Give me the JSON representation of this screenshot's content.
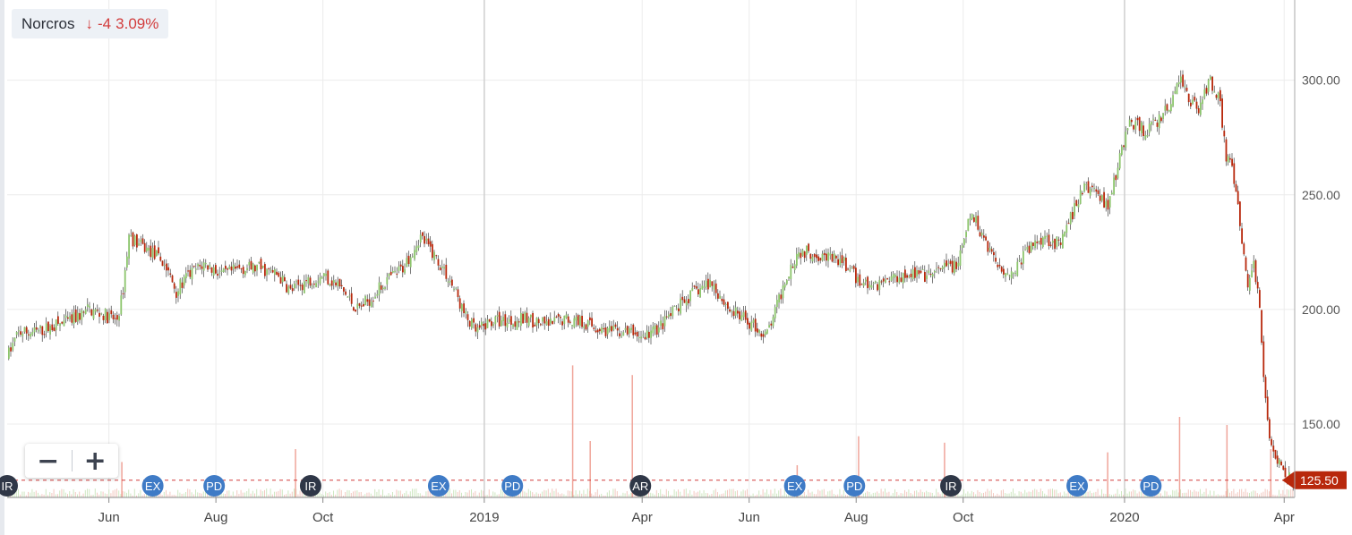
{
  "header": {
    "symbol": "Norcros",
    "change": "-4",
    "change_percent": "3.09%",
    "arrow_icon": "arrow-down-icon",
    "down_color": "#d23c3c"
  },
  "zoom": {
    "minus_label": "−",
    "plus_label": "+"
  },
  "colors": {
    "up": "#8cc56c",
    "down": "#b8280c",
    "wick": "#222222",
    "last_line": "#d23c3c",
    "event_light": "#3f7bc6",
    "event_dark": "#2f3747"
  },
  "chart_data": {
    "type": "candlestick",
    "title": "",
    "xlabel": "",
    "ylabel": "",
    "x_range": [
      "2018-04-04",
      "2020-04-07"
    ],
    "ylim": [
      118,
      335
    ],
    "y_ticks": [
      150,
      200,
      250,
      300
    ],
    "y_tick_labels": [
      "150.00",
      "200.00",
      "250.00",
      "300.00"
    ],
    "x_ticks": [
      {
        "date": "2018-06-01",
        "label": "Jun"
      },
      {
        "date": "2018-08-01",
        "label": "Aug"
      },
      {
        "date": "2018-10-01",
        "label": "Oct"
      },
      {
        "date": "2019-01-01",
        "label": "2019"
      },
      {
        "date": "2019-04-01",
        "label": "Apr"
      },
      {
        "date": "2019-06-01",
        "label": "Jun"
      },
      {
        "date": "2019-08-01",
        "label": "Aug"
      },
      {
        "date": "2019-10-01",
        "label": "Oct"
      },
      {
        "date": "2020-01-01",
        "label": "2020"
      },
      {
        "date": "2020-04-01",
        "label": "Apr"
      }
    ],
    "last_price": 125.5,
    "last_price_label": "125.50",
    "grid": true,
    "price_path": [
      [
        "2018-04-04",
        180
      ],
      [
        "2018-04-10",
        190
      ],
      [
        "2018-04-20",
        190
      ],
      [
        "2018-05-01",
        193
      ],
      [
        "2018-05-10",
        195
      ],
      [
        "2018-05-20",
        200
      ],
      [
        "2018-05-28",
        198
      ],
      [
        "2018-06-05",
        195
      ],
      [
        "2018-06-08",
        205
      ],
      [
        "2018-06-12",
        232
      ],
      [
        "2018-06-18",
        228
      ],
      [
        "2018-06-25",
        225
      ],
      [
        "2018-07-02",
        220
      ],
      [
        "2018-07-09",
        208
      ],
      [
        "2018-07-16",
        215
      ],
      [
        "2018-07-25",
        220
      ],
      [
        "2018-08-05",
        215
      ],
      [
        "2018-08-15",
        218
      ],
      [
        "2018-08-25",
        218
      ],
      [
        "2018-09-05",
        215
      ],
      [
        "2018-09-12",
        208
      ],
      [
        "2018-09-20",
        212
      ],
      [
        "2018-10-01",
        215
      ],
      [
        "2018-10-10",
        210
      ],
      [
        "2018-10-20",
        200
      ],
      [
        "2018-10-28",
        205
      ],
      [
        "2018-11-05",
        212
      ],
      [
        "2018-11-15",
        218
      ],
      [
        "2018-11-25",
        232
      ],
      [
        "2018-12-01",
        226
      ],
      [
        "2018-12-08",
        218
      ],
      [
        "2018-12-15",
        208
      ],
      [
        "2018-12-20",
        198
      ],
      [
        "2018-12-27",
        190
      ],
      [
        "2019-01-05",
        195
      ],
      [
        "2019-01-15",
        195
      ],
      [
        "2019-01-25",
        196
      ],
      [
        "2019-02-05",
        193
      ],
      [
        "2019-02-15",
        196
      ],
      [
        "2019-02-25",
        195
      ],
      [
        "2019-03-05",
        192
      ],
      [
        "2019-03-15",
        190
      ],
      [
        "2019-03-25",
        190
      ],
      [
        "2019-04-01",
        188
      ],
      [
        "2019-04-10",
        192
      ],
      [
        "2019-04-20",
        200
      ],
      [
        "2019-05-01",
        208
      ],
      [
        "2019-05-10",
        212
      ],
      [
        "2019-05-20",
        200
      ],
      [
        "2019-05-28",
        196
      ],
      [
        "2019-06-05",
        192
      ],
      [
        "2019-06-10",
        188
      ],
      [
        "2019-06-15",
        198
      ],
      [
        "2019-06-22",
        215
      ],
      [
        "2019-06-28",
        225
      ],
      [
        "2019-07-05",
        225
      ],
      [
        "2019-07-15",
        223
      ],
      [
        "2019-07-25",
        220
      ],
      [
        "2019-08-01",
        213
      ],
      [
        "2019-08-10",
        210
      ],
      [
        "2019-08-20",
        214
      ],
      [
        "2019-09-01",
        216
      ],
      [
        "2019-09-10",
        214
      ],
      [
        "2019-09-20",
        218
      ],
      [
        "2019-09-28",
        220
      ],
      [
        "2019-10-05",
        242
      ],
      [
        "2019-10-12",
        232
      ],
      [
        "2019-10-20",
        220
      ],
      [
        "2019-10-28",
        215
      ],
      [
        "2019-11-05",
        225
      ],
      [
        "2019-11-15",
        232
      ],
      [
        "2019-11-25",
        228
      ],
      [
        "2019-12-01",
        240
      ],
      [
        "2019-12-08",
        253
      ],
      [
        "2019-12-15",
        252
      ],
      [
        "2019-12-22",
        245
      ],
      [
        "2019-12-27",
        260
      ],
      [
        "2020-01-03",
        282
      ],
      [
        "2020-01-12",
        278
      ],
      [
        "2020-01-20",
        282
      ],
      [
        "2020-01-27",
        290
      ],
      [
        "2020-02-01",
        302
      ],
      [
        "2020-02-06",
        292
      ],
      [
        "2020-02-12",
        288
      ],
      [
        "2020-02-18",
        300
      ],
      [
        "2020-02-24",
        292
      ],
      [
        "2020-02-27",
        268
      ],
      [
        "2020-03-02",
        260
      ],
      [
        "2020-03-05",
        246
      ],
      [
        "2020-03-08",
        225
      ],
      [
        "2020-03-11",
        210
      ],
      [
        "2020-03-14",
        222
      ],
      [
        "2020-03-17",
        205
      ],
      [
        "2020-03-20",
        170
      ],
      [
        "2020-03-24",
        140
      ],
      [
        "2020-03-28",
        135
      ],
      [
        "2020-04-01",
        130
      ],
      [
        "2020-04-06",
        125.5
      ]
    ],
    "volume_spikes": [
      [
        "2019-02-20",
        0.82
      ],
      [
        "2019-03-26",
        0.76
      ],
      [
        "2019-03-02",
        0.35
      ],
      [
        "2018-09-15",
        0.3
      ],
      [
        "2019-08-02",
        0.38
      ],
      [
        "2019-09-20",
        0.34
      ],
      [
        "2020-02-01",
        0.5
      ],
      [
        "2020-02-28",
        0.45
      ],
      [
        "2019-12-22",
        0.28
      ],
      [
        "2018-06-08",
        0.22
      ],
      [
        "2020-03-24",
        0.3
      ],
      [
        "2019-06-28",
        0.2
      ]
    ],
    "events": [
      {
        "label": "IR",
        "date": "2018-04-04",
        "style": "dark"
      },
      {
        "label": "EX",
        "date": "2018-06-26",
        "style": "light"
      },
      {
        "label": "PD",
        "date": "2018-07-31",
        "style": "light"
      },
      {
        "label": "IR",
        "date": "2018-09-24",
        "style": "dark"
      },
      {
        "label": "EX",
        "date": "2018-12-06",
        "style": "light"
      },
      {
        "label": "PD",
        "date": "2019-01-17",
        "style": "light"
      },
      {
        "label": "AR",
        "date": "2019-03-31",
        "style": "dark"
      },
      {
        "label": "EX",
        "date": "2019-06-27",
        "style": "light"
      },
      {
        "label": "PD",
        "date": "2019-07-31",
        "style": "light"
      },
      {
        "label": "IR",
        "date": "2019-09-24",
        "style": "dark"
      },
      {
        "label": "EX",
        "date": "2019-12-05",
        "style": "light"
      },
      {
        "label": "PD",
        "date": "2020-01-16",
        "style": "light"
      }
    ]
  }
}
